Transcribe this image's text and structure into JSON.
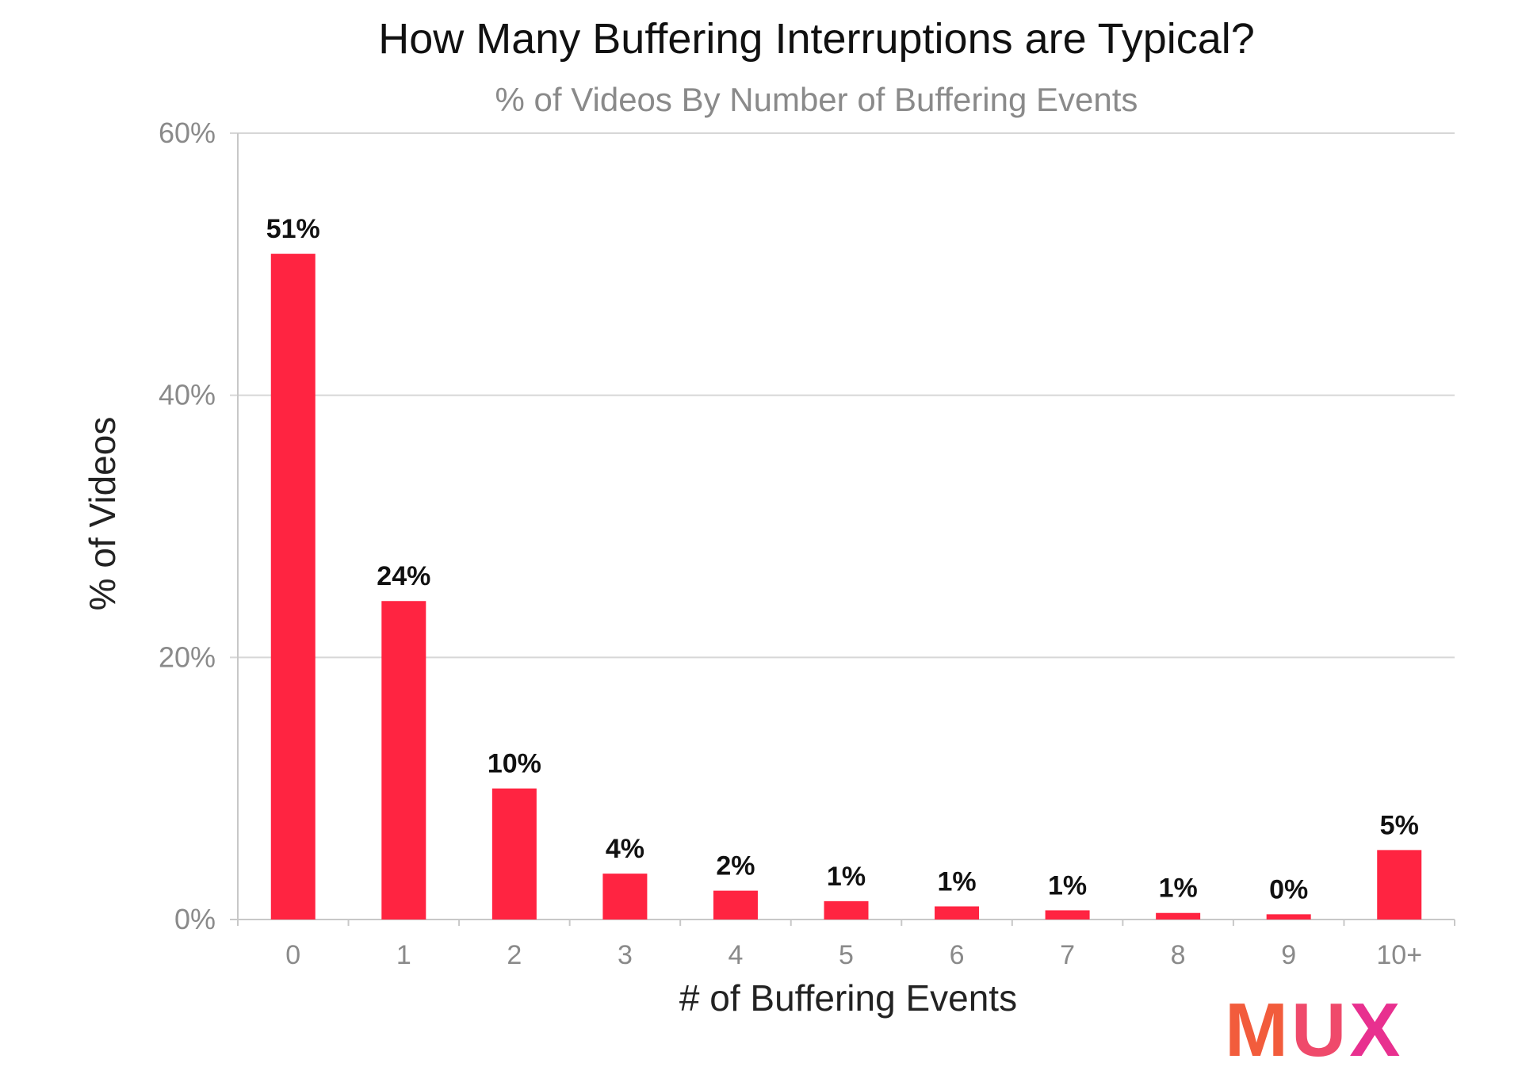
{
  "chart_data": {
    "type": "bar",
    "title": "How Many Buffering Interruptions are Typical?",
    "subtitle": "% of Videos By Number of Buffering Events",
    "xlabel": "# of Buffering Events",
    "ylabel": "% of Videos",
    "categories": [
      "0",
      "1",
      "2",
      "3",
      "4",
      "5",
      "6",
      "7",
      "8",
      "9",
      "10+"
    ],
    "values": [
      50.8,
      24.3,
      10.0,
      3.5,
      2.2,
      1.4,
      1.0,
      0.7,
      0.5,
      0.4,
      5.3
    ],
    "data_labels": [
      "51%",
      "24%",
      "10%",
      "4%",
      "2%",
      "1%",
      "1%",
      "1%",
      "1%",
      "0%",
      "5%"
    ],
    "ylim": [
      0,
      60
    ],
    "yticks": [
      0,
      20,
      40,
      60
    ],
    "ytick_labels": [
      "0%",
      "20%",
      "40%",
      "60%"
    ],
    "grid": true,
    "bar_color": "#ff2441"
  },
  "logo": {
    "text": "MUX",
    "colors": [
      "#f25c3c",
      "#ef4a6b",
      "#e8308f"
    ]
  }
}
